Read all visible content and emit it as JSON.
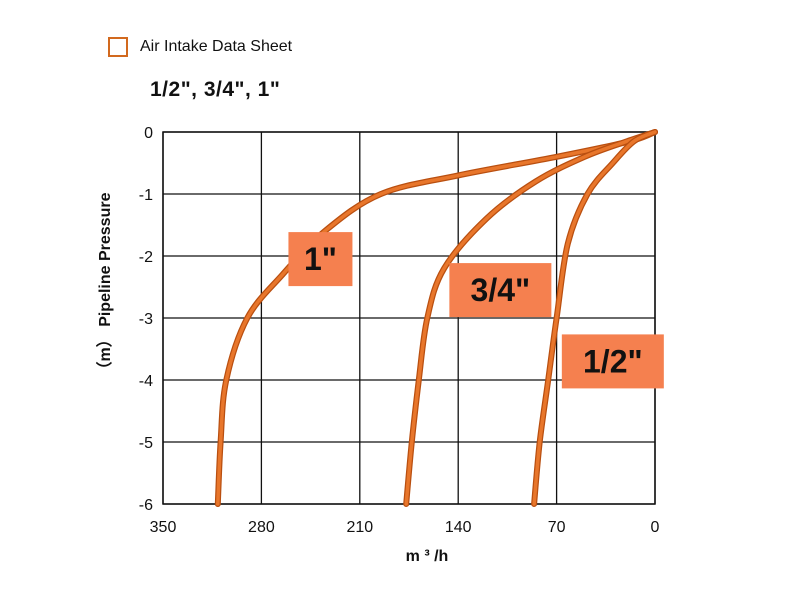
{
  "chart_data": {
    "type": "line",
    "title": "",
    "legend": {
      "label": "Air Intake Data Sheet",
      "color": "#d2691e"
    },
    "subtitle": "1/2\", 3/4\", 1\"",
    "xlabel": "m ³ /h",
    "ylabel": "（m） Pipeline Pressure",
    "xlim": [
      350,
      0
    ],
    "ylim": [
      -6,
      0
    ],
    "x_ticks": [
      "350",
      "280",
      "210",
      "140",
      "70",
      "0"
    ],
    "y_ticks": [
      "0",
      "-1",
      "-2",
      "-3",
      "-4",
      "-5",
      "-6"
    ],
    "grid": true,
    "series": [
      {
        "name": "1\"",
        "color": "#e8762b",
        "x": [
          0,
          18,
          70,
          140,
          195,
          235,
          265,
          290,
          305,
          309,
          311
        ],
        "y": [
          0,
          -0.15,
          -0.4,
          -0.7,
          -1.0,
          -1.6,
          -2.3,
          -3.0,
          -4.0,
          -5.0,
          -6.0
        ]
      },
      {
        "name": "3/4\"",
        "color": "#e8762b",
        "x": [
          0,
          20,
          50,
          85,
          120,
          150,
          162,
          168,
          173,
          177
        ],
        "y": [
          0,
          -0.15,
          -0.4,
          -0.8,
          -1.4,
          -2.2,
          -3.0,
          -4.0,
          -5.0,
          -6.0
        ]
      },
      {
        "name": "1/2\"",
        "color": "#e8762b",
        "x": [
          0,
          15,
          30,
          48,
          62,
          70,
          76,
          82,
          86
        ],
        "y": [
          0,
          -0.15,
          -0.5,
          -1.0,
          -1.8,
          -3.0,
          -4.0,
          -5.0,
          -6.0
        ]
      }
    ],
    "series_labels": [
      {
        "text": "1\"",
        "x": 238,
        "y": -2.05
      },
      {
        "text": "3/4\"",
        "x": 110,
        "y": -2.55
      },
      {
        "text": "1/2\"",
        "x": 30,
        "y": -3.7
      }
    ]
  }
}
